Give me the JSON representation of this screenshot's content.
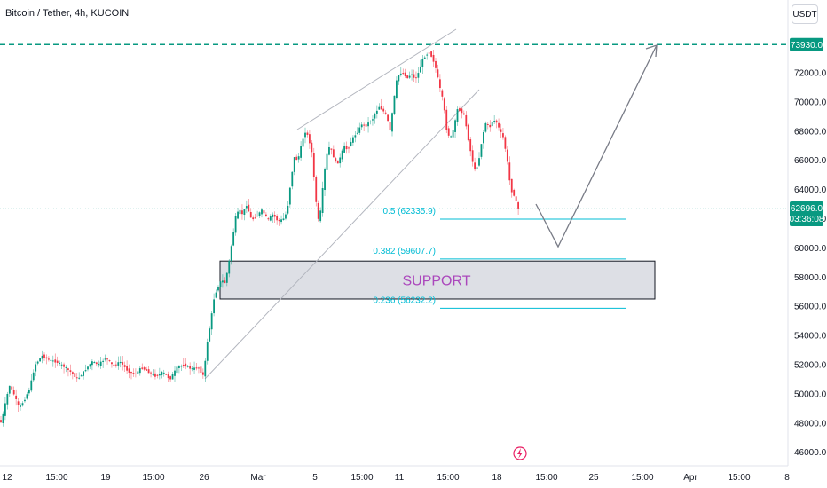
{
  "header": {
    "title": "Bitcoin / Tether, 4h, KUCOIN",
    "currency": "USDT"
  },
  "price_tags": {
    "target": "73930.0",
    "last": "62696.0",
    "countdown": "03:36:08"
  },
  "annotations": {
    "support_label": "SUPPORT",
    "fib": [
      {
        "label": "0.5 (62335.9)",
        "price": 62335.9
      },
      {
        "label": "0.382 (59607.7)",
        "price": 59607.7
      },
      {
        "label": "0.236 (56232.2)",
        "price": 56232.2
      }
    ]
  },
  "colors": {
    "up": "#26a69a",
    "down": "#ef5350",
    "accent": "#089981",
    "fib": "#00bcd4",
    "support": "#ab47bc"
  },
  "chart_data": {
    "type": "candlestick",
    "title": "Bitcoin / Tether, 4h, KUCOIN",
    "y_axis": {
      "ticks": [
        46000,
        48000,
        50000,
        52000,
        54000,
        56000,
        58000,
        60000,
        62000,
        64000,
        66000,
        68000,
        70000,
        72000
      ],
      "tick_labels": [
        "46000.0",
        "48000.0",
        "50000.0",
        "52000.0",
        "54000.0",
        "56000.0",
        "58000.0",
        "60000.0",
        "62000.0",
        "64000.0",
        "66000.0",
        "68000.0",
        "70000.0",
        "72000.0"
      ],
      "range": [
        45500,
        74800
      ]
    },
    "x_axis": {
      "tick_labels": [
        "12",
        "15:00",
        "19",
        "15:00",
        "26",
        "Mar",
        "5",
        "15:00",
        "11",
        "15:00",
        "18",
        "15:00",
        "25",
        "15:00",
        "Apr",
        "15:00",
        "8"
      ]
    },
    "price_path": [
      [
        0,
        48300
      ],
      [
        4,
        48000
      ],
      [
        8,
        49200
      ],
      [
        13,
        50600
      ],
      [
        18,
        50000
      ],
      [
        24,
        49000
      ],
      [
        30,
        49600
      ],
      [
        36,
        50400
      ],
      [
        42,
        52000
      ],
      [
        50,
        52600
      ],
      [
        58,
        52300
      ],
      [
        66,
        52200
      ],
      [
        74,
        51900
      ],
      [
        82,
        51500
      ],
      [
        90,
        51000
      ],
      [
        98,
        51600
      ],
      [
        106,
        52200
      ],
      [
        114,
        52000
      ],
      [
        122,
        52500
      ],
      [
        130,
        51900
      ],
      [
        138,
        52200
      ],
      [
        146,
        51600
      ],
      [
        154,
        51300
      ],
      [
        162,
        51800
      ],
      [
        170,
        51500
      ],
      [
        178,
        51200
      ],
      [
        186,
        51500
      ],
      [
        194,
        51000
      ],
      [
        202,
        51800
      ],
      [
        210,
        52000
      ],
      [
        218,
        51700
      ],
      [
        226,
        51800
      ],
      [
        232,
        51200
      ],
      [
        236,
        53500
      ],
      [
        240,
        55000
      ],
      [
        244,
        56700
      ],
      [
        248,
        57300
      ],
      [
        252,
        57800
      ],
      [
        256,
        57600
      ],
      [
        260,
        58800
      ],
      [
        264,
        60500
      ],
      [
        268,
        62100
      ],
      [
        272,
        62600
      ],
      [
        276,
        62300
      ],
      [
        280,
        63000
      ],
      [
        286,
        61900
      ],
      [
        292,
        62200
      ],
      [
        298,
        62600
      ],
      [
        304,
        61900
      ],
      [
        310,
        62300
      ],
      [
        316,
        61800
      ],
      [
        322,
        62000
      ],
      [
        326,
        62500
      ],
      [
        330,
        64500
      ],
      [
        334,
        66200
      ],
      [
        338,
        66000
      ],
      [
        342,
        67000
      ],
      [
        346,
        68000
      ],
      [
        350,
        67600
      ],
      [
        354,
        66500
      ],
      [
        358,
        63500
      ],
      [
        362,
        61500
      ],
      [
        366,
        64000
      ],
      [
        370,
        66200
      ],
      [
        374,
        67000
      ],
      [
        378,
        66300
      ],
      [
        382,
        65700
      ],
      [
        386,
        66200
      ],
      [
        390,
        67000
      ],
      [
        394,
        66700
      ],
      [
        398,
        67300
      ],
      [
        402,
        67700
      ],
      [
        406,
        68000
      ],
      [
        410,
        68500
      ],
      [
        414,
        68300
      ],
      [
        418,
        68600
      ],
      [
        422,
        68800
      ],
      [
        426,
        69300
      ],
      [
        430,
        69700
      ],
      [
        434,
        69400
      ],
      [
        438,
        69100
      ],
      [
        442,
        68000
      ],
      [
        446,
        70000
      ],
      [
        450,
        71700
      ],
      [
        454,
        72000
      ],
      [
        458,
        71900
      ],
      [
        462,
        71600
      ],
      [
        466,
        72000
      ],
      [
        470,
        71500
      ],
      [
        474,
        72000
      ],
      [
        478,
        72800
      ],
      [
        482,
        73200
      ],
      [
        486,
        73400
      ],
      [
        490,
        73000
      ],
      [
        494,
        72200
      ],
      [
        498,
        71000
      ],
      [
        502,
        70000
      ],
      [
        506,
        68000
      ],
      [
        510,
        67500
      ],
      [
        514,
        68200
      ],
      [
        518,
        69500
      ],
      [
        522,
        69400
      ],
      [
        526,
        69000
      ],
      [
        530,
        67500
      ],
      [
        534,
        66200
      ],
      [
        538,
        65200
      ],
      [
        542,
        66000
      ],
      [
        546,
        67600
      ],
      [
        550,
        68600
      ],
      [
        554,
        68200
      ],
      [
        558,
        68800
      ],
      [
        562,
        68600
      ],
      [
        566,
        68000
      ],
      [
        570,
        67500
      ],
      [
        574,
        66000
      ],
      [
        578,
        64000
      ],
      [
        582,
        63600
      ],
      [
        586,
        62700
      ]
    ]
  }
}
